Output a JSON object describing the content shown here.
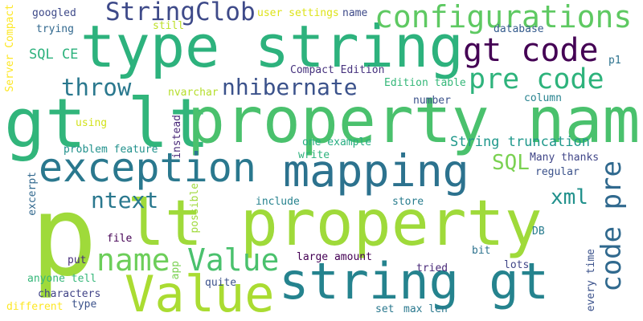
{
  "words": [
    {
      "text": "p",
      "color": "#9fda3a"
    },
    {
      "text": "lt property",
      "color": "#9fda3a"
    },
    {
      "text": "type string",
      "color": "#2db27d"
    },
    {
      "text": "gt lt",
      "color": "#31b57b"
    },
    {
      "text": "property name",
      "color": "#4ac16d"
    },
    {
      "text": "string gt",
      "color": "#25838e"
    },
    {
      "text": "Value",
      "color": "#aadc32"
    },
    {
      "text": "mapping",
      "color": "#2c728e"
    },
    {
      "text": "exception",
      "color": "#2a788e"
    },
    {
      "text": "configurations",
      "color": "#5ec962"
    },
    {
      "text": "StringClob",
      "color": "#3e4a89"
    },
    {
      "text": "gt code",
      "color": "#440154"
    },
    {
      "text": "pre code",
      "color": "#2eb37c"
    },
    {
      "text": "nhibernate",
      "color": "#3b528b"
    },
    {
      "text": "throw",
      "color": "#2a788e"
    },
    {
      "text": "code pre",
      "color": "#30698e"
    },
    {
      "text": "name",
      "color": "#6cce59"
    },
    {
      "text": "Value",
      "color": "#4ac16d"
    },
    {
      "text": "ntext",
      "color": "#2a788e"
    },
    {
      "text": "SQL",
      "color": "#7ad151"
    },
    {
      "text": "xml",
      "color": "#21918c"
    },
    {
      "text": "SQL CE",
      "color": "#2db27d"
    },
    {
      "text": "String truncation",
      "color": "#1f988b"
    },
    {
      "text": "googled",
      "color": "#3e4a89"
    },
    {
      "text": "user settings",
      "color": "#dde318"
    },
    {
      "text": "name",
      "color": "#3e4a89"
    },
    {
      "text": "trying",
      "color": "#31688e"
    },
    {
      "text": "still",
      "color": "#bddf26"
    },
    {
      "text": "database",
      "color": "#365c8d"
    },
    {
      "text": "Server Compact",
      "color": "#fde725"
    },
    {
      "text": "Compact Edition",
      "color": "#46327e"
    },
    {
      "text": "Edition table",
      "color": "#35b779"
    },
    {
      "text": "p1",
      "color": "#2c728e"
    },
    {
      "text": "nvarchar",
      "color": "#b5de2b"
    },
    {
      "text": "number",
      "color": "#3b528b"
    },
    {
      "text": "column",
      "color": "#26828e"
    },
    {
      "text": "using",
      "color": "#d2e21b"
    },
    {
      "text": "instead",
      "color": "#482878"
    },
    {
      "text": "one example",
      "color": "#26ad81"
    },
    {
      "text": "problem feature",
      "color": "#21918c"
    },
    {
      "text": "write",
      "color": "#2db27d"
    },
    {
      "text": "Many thanks",
      "color": "#404688"
    },
    {
      "text": "regular",
      "color": "#3b528b"
    },
    {
      "text": "excerpt",
      "color": "#31688e"
    },
    {
      "text": "possible",
      "color": "#9fda3a"
    },
    {
      "text": "include",
      "color": "#26828e"
    },
    {
      "text": "store",
      "color": "#287c8e"
    },
    {
      "text": "DB",
      "color": "#287c8e"
    },
    {
      "text": "file",
      "color": "#440154"
    },
    {
      "text": "bit",
      "color": "#2c728e"
    },
    {
      "text": "put",
      "color": "#472d7b"
    },
    {
      "text": "app",
      "color": "#7ad151"
    },
    {
      "text": "large amount",
      "color": "#440154"
    },
    {
      "text": "tried",
      "color": "#482878"
    },
    {
      "text": "lots",
      "color": "#404688"
    },
    {
      "text": "every time",
      "color": "#3b528b"
    },
    {
      "text": "anyone tell",
      "color": "#35b779"
    },
    {
      "text": "quite",
      "color": "#3b528b"
    },
    {
      "text": "characters",
      "color": "#414487"
    },
    {
      "text": "different",
      "color": "#fde725"
    },
    {
      "text": "type",
      "color": "#3b528b"
    },
    {
      "text": "set",
      "color": "#2a788e"
    },
    {
      "text": "max len",
      "color": "#2a788e"
    }
  ]
}
